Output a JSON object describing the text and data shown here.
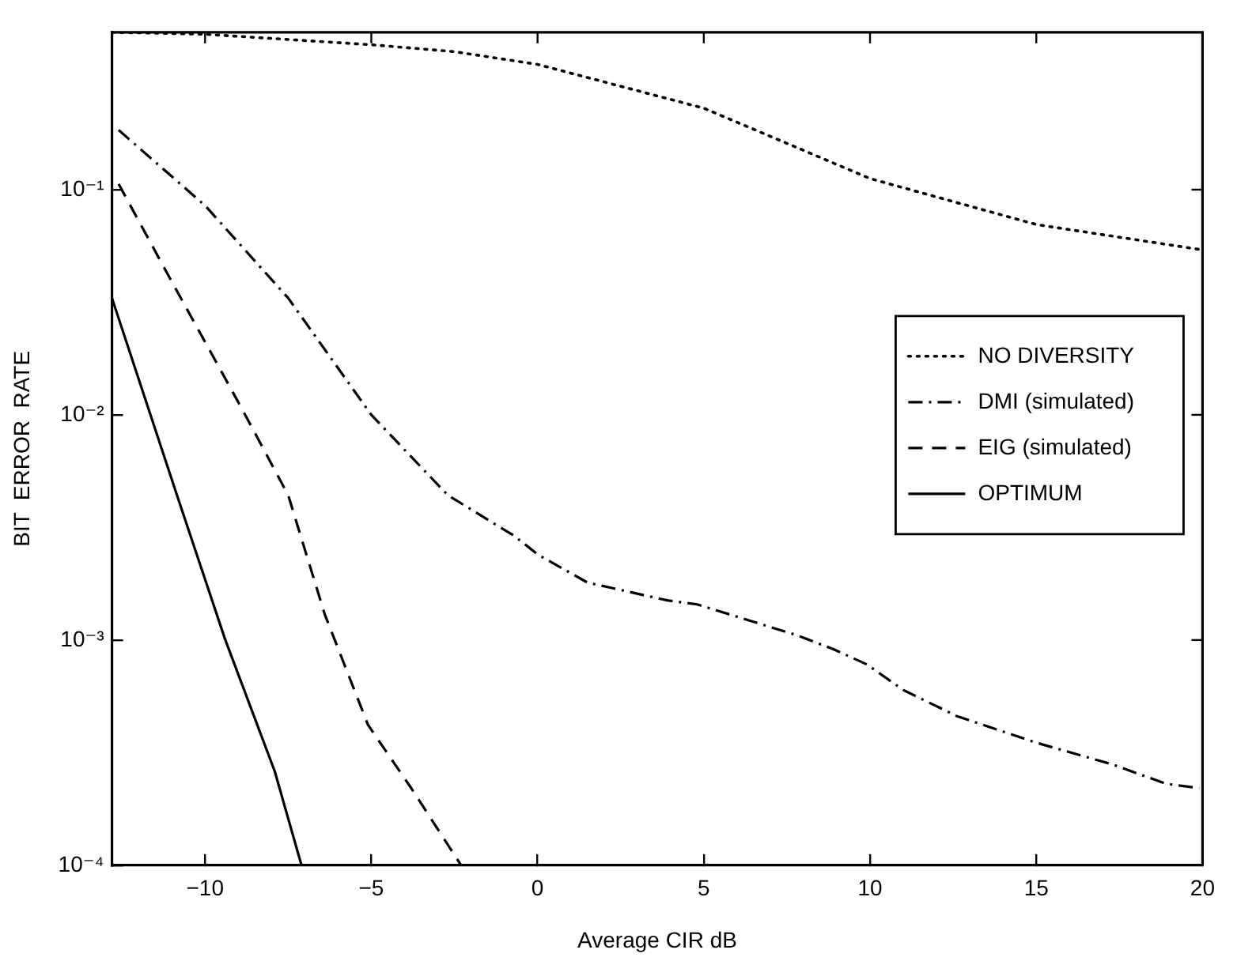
{
  "chart_data": {
    "type": "line",
    "xlabel": "Average CIR dB",
    "ylabel": "BIT  ERROR  RATE",
    "log": "y",
    "grid": false,
    "legend": "right",
    "marker": "none",
    "xlim": [
      -12.8,
      20
    ],
    "xticks": [
      {
        "value": -10,
        "label": "−10"
      },
      {
        "value": -5,
        "label": "−5"
      },
      0,
      5,
      10,
      15,
      20
    ],
    "ylim": [
      0.0001,
      0.5
    ],
    "yticks": [
      {
        "value": 0.0001,
        "label": "10⁻⁴"
      },
      {
        "value": 0.001,
        "label": "10⁻³"
      },
      {
        "value": 0.01,
        "label": "10⁻²"
      },
      {
        "value": 0.1,
        "label": "10⁻¹"
      }
    ],
    "series": [
      {
        "name": "NO DIVERSITY",
        "color": "#000000",
        "line_style": "dotted",
        "x": [
          -12.8,
          -10,
          -5,
          -2.5,
          0,
          5,
          10,
          15,
          20
        ],
        "values": [
          0.5,
          0.49,
          0.44,
          0.41,
          0.36,
          0.23,
          0.112,
          0.07,
          0.054
        ]
      },
      {
        "name": "DMI (simulated)",
        "color": "#000000",
        "line_style": "dashdot",
        "x": [
          -12.6,
          -10,
          -7.5,
          -5,
          -2.7,
          -0.7,
          0,
          1.5,
          3.9,
          4.8,
          7.8,
          8.9,
          9.9,
          11,
          12.6,
          15,
          17.3,
          18.9,
          19.9
        ],
        "values": [
          0.184,
          0.085,
          0.033,
          0.01,
          0.0044,
          0.0029,
          0.0024,
          0.0018,
          0.0015,
          0.00144,
          0.00105,
          0.00091,
          0.00078,
          0.0006,
          0.00046,
          0.00035,
          0.00028,
          0.00023,
          0.00022
        ]
      },
      {
        "name": "EIG (simulated)",
        "color": "#000000",
        "line_style": "dashed",
        "x": [
          -12.6,
          -11,
          -8.9,
          -7.5,
          -6.4,
          -5.1,
          -3.8,
          -2.3
        ],
        "values": [
          0.106,
          0.039,
          0.0107,
          0.0044,
          0.0013,
          0.00042,
          0.00022,
          0.0001
        ]
      },
      {
        "name": "OPTIMUM",
        "color": "#000000",
        "line_style": "solid",
        "x": [
          -12.8,
          -10.8,
          -9.4,
          -7.9,
          -7.1
        ],
        "values": [
          0.033,
          0.0042,
          0.00101,
          0.00026,
          0.0001
        ]
      }
    ]
  }
}
